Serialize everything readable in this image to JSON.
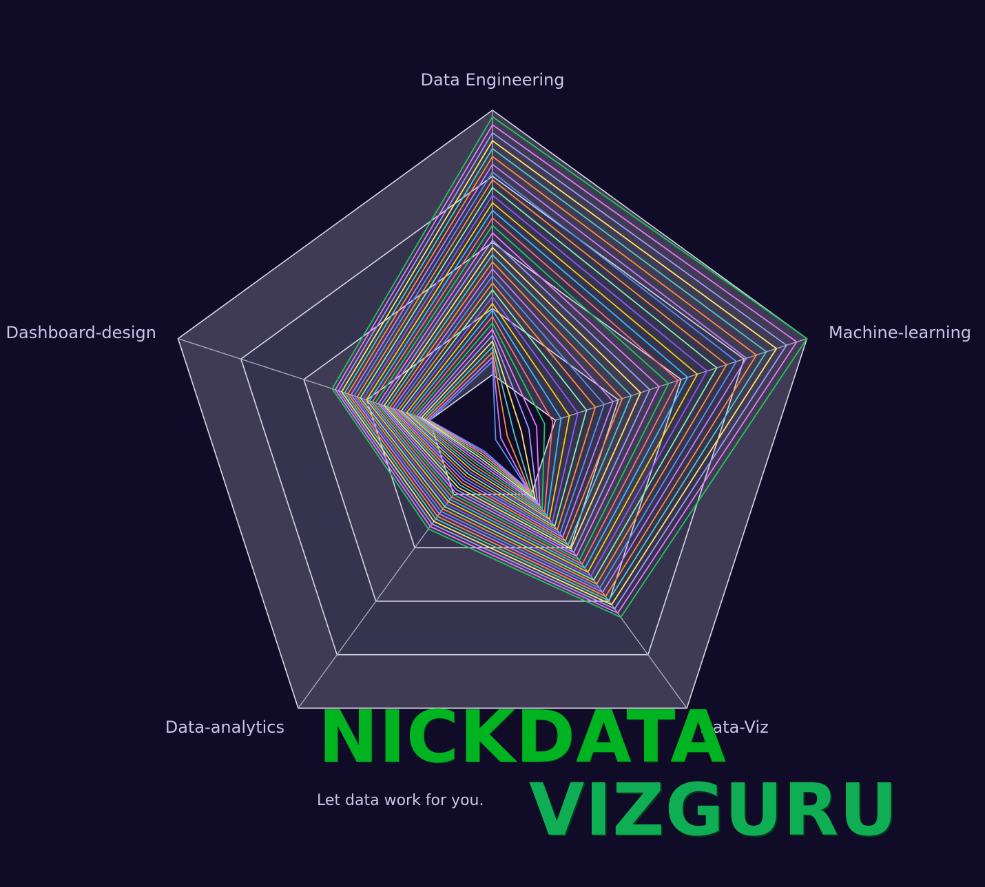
{
  "chart_data": {
    "type": "radar",
    "axes": [
      "Data Engineering",
      "Machine-learning",
      "Data-Viz",
      "Data-analytics",
      "Dashboard-design"
    ],
    "rings": 5,
    "max": 5,
    "series_count": 36,
    "series_first": [
      1.2,
      0.05,
      0.9,
      0.2,
      1.0
    ],
    "series_last": [
      4.9,
      5.0,
      3.3,
      1.65,
      2.55
    ],
    "colors": [
      "#5b8ff9",
      "#c77dff",
      "#ff8c42",
      "#4ecdc4",
      "#ffe66d",
      "#a29bfe",
      "#e879f9",
      "#22c55e",
      "#f87171",
      "#38bdf8",
      "#facc15",
      "#8b5cf6",
      "#86efac",
      "#fb923c"
    ],
    "ring_fill_colors": [
      "#403b54",
      "#36334f"
    ],
    "grid_color": "#d8d6e6"
  },
  "brand": {
    "name_line1": "NICKDATA",
    "name_line2": "VIZGURU",
    "tagline": "Let data work for you."
  }
}
